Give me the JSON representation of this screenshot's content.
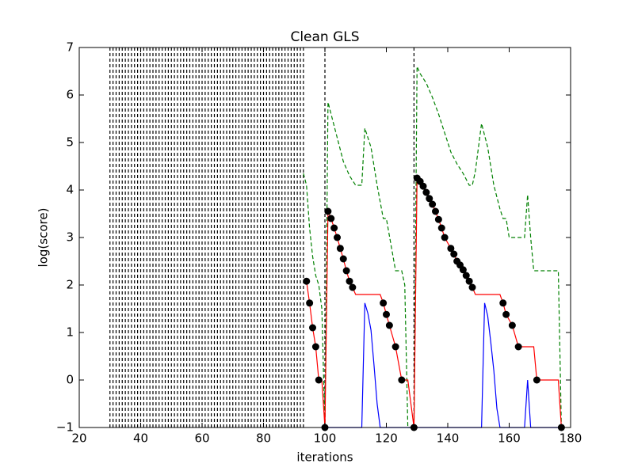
{
  "chart_data": {
    "type": "line",
    "title": "Clean GLS",
    "xlabel": "iterations",
    "ylabel": "log(score)",
    "xlim": [
      20,
      180
    ],
    "ylim": [
      -1,
      7
    ],
    "xticks": [
      20,
      40,
      60,
      80,
      100,
      120,
      140,
      160,
      180
    ],
    "yticks": [
      {
        "value": -1,
        "label": "−1"
      },
      0,
      1,
      2,
      3,
      4,
      5,
      6,
      7
    ],
    "vlines": {
      "color": "#000000",
      "style": "dashed",
      "x": [
        30,
        31,
        32,
        33,
        34,
        35,
        36,
        37,
        38,
        39,
        40,
        41,
        42,
        43,
        44,
        45,
        46,
        47,
        48,
        49,
        50,
        51,
        52,
        53,
        54,
        55,
        56,
        57,
        58,
        59,
        60,
        61,
        62,
        63,
        64,
        65,
        66,
        67,
        68,
        69,
        70,
        71,
        72,
        73,
        74,
        75,
        76,
        77,
        78,
        79,
        80,
        81,
        82,
        83,
        84,
        85,
        86,
        87,
        88,
        89,
        90,
        91,
        92,
        93,
        100,
        129
      ]
    },
    "series": [
      {
        "color": "#008000",
        "style": "dashed",
        "x": [
          93,
          94,
          95,
          96,
          97,
          98,
          99,
          100,
          101,
          102,
          104,
          106,
          108,
          110,
          112,
          113,
          115,
          117,
          119,
          120,
          123,
          125,
          126,
          127,
          129,
          130,
          131,
          133,
          135,
          137,
          139,
          141,
          143,
          145,
          147,
          148,
          149,
          151,
          153,
          155,
          157,
          158,
          159,
          160,
          161,
          162,
          163,
          164,
          165,
          166,
          167,
          168,
          176,
          177
        ],
        "values": [
          4.35,
          4.1,
          3.2,
          2.6,
          2.2,
          2.0,
          1.5,
          -1,
          5.85,
          5.6,
          5.1,
          4.6,
          4.3,
          4.1,
          4.1,
          5.3,
          4.9,
          4.1,
          3.4,
          3.4,
          2.3,
          2.3,
          2.0,
          -1,
          -1,
          6.6,
          6.45,
          6.25,
          5.95,
          5.6,
          5.2,
          4.8,
          4.55,
          4.35,
          4.1,
          4.1,
          4.4,
          5.4,
          4.9,
          4.1,
          3.6,
          3.4,
          3.4,
          3.0,
          3.0,
          3.0,
          3.0,
          3.0,
          3.0,
          3.9,
          3.0,
          2.3,
          2.3,
          -1
        ]
      },
      {
        "color": "#0000ff",
        "style": "solid",
        "x": [
          100,
          112,
          113,
          114,
          115,
          116,
          117,
          118,
          151,
          152,
          153,
          154,
          155,
          156,
          157,
          165,
          166,
          167,
          177
        ],
        "values": [
          -1,
          -1,
          1.62,
          1.4,
          1.05,
          0.3,
          -0.5,
          -1,
          -1,
          1.62,
          1.35,
          0.8,
          0.2,
          -0.6,
          -1,
          -1,
          0,
          -1,
          -1
        ]
      },
      {
        "color": "#ff0000",
        "style": "solid",
        "x": [
          94,
          95,
          96,
          97,
          98,
          99,
          100,
          101,
          102,
          103,
          104,
          105,
          106,
          107,
          108,
          109,
          110,
          118,
          119,
          120,
          121,
          123,
          125,
          127,
          129,
          130,
          131,
          132,
          133,
          134,
          135,
          136,
          137,
          138,
          139,
          141,
          142,
          143,
          144,
          145,
          146,
          147,
          148,
          149,
          157,
          158,
          159,
          161,
          163,
          168,
          169,
          176,
          177
        ],
        "values": [
          2.08,
          1.62,
          1.1,
          0.7,
          0,
          0,
          -1,
          3.55,
          3.4,
          3.2,
          3.0,
          2.77,
          2.55,
          2.3,
          2.08,
          1.95,
          1.8,
          1.8,
          1.62,
          1.38,
          1.15,
          0.7,
          0,
          0,
          -1,
          4.25,
          4.18,
          4.08,
          3.95,
          3.82,
          3.7,
          3.55,
          3.38,
          3.2,
          3.0,
          2.77,
          2.65,
          2.5,
          2.42,
          2.32,
          2.2,
          2.08,
          1.95,
          1.8,
          1.8,
          1.62,
          1.38,
          1.15,
          0.7,
          0.7,
          0,
          0,
          -1
        ]
      },
      {
        "color": "#000000",
        "style": "markers",
        "x": [
          94,
          95,
          96,
          97,
          98,
          100,
          101,
          102,
          103,
          104,
          105,
          106,
          107,
          108,
          109,
          119,
          120,
          121,
          123,
          125,
          129,
          130,
          131,
          132,
          133,
          134,
          135,
          136,
          137,
          138,
          139,
          141,
          142,
          143,
          144,
          145,
          146,
          147,
          148,
          158,
          159,
          161,
          163,
          169,
          177
        ],
        "values": [
          2.08,
          1.62,
          1.1,
          0.7,
          0,
          -1,
          3.55,
          3.4,
          3.2,
          3.0,
          2.77,
          2.55,
          2.3,
          2.08,
          1.95,
          1.62,
          1.38,
          1.15,
          0.7,
          0,
          -1,
          4.25,
          4.18,
          4.08,
          3.95,
          3.82,
          3.7,
          3.55,
          3.38,
          3.2,
          3.0,
          2.77,
          2.65,
          2.5,
          2.42,
          2.32,
          2.2,
          2.08,
          1.95,
          1.62,
          1.38,
          1.15,
          0.7,
          0,
          -1
        ]
      }
    ]
  }
}
